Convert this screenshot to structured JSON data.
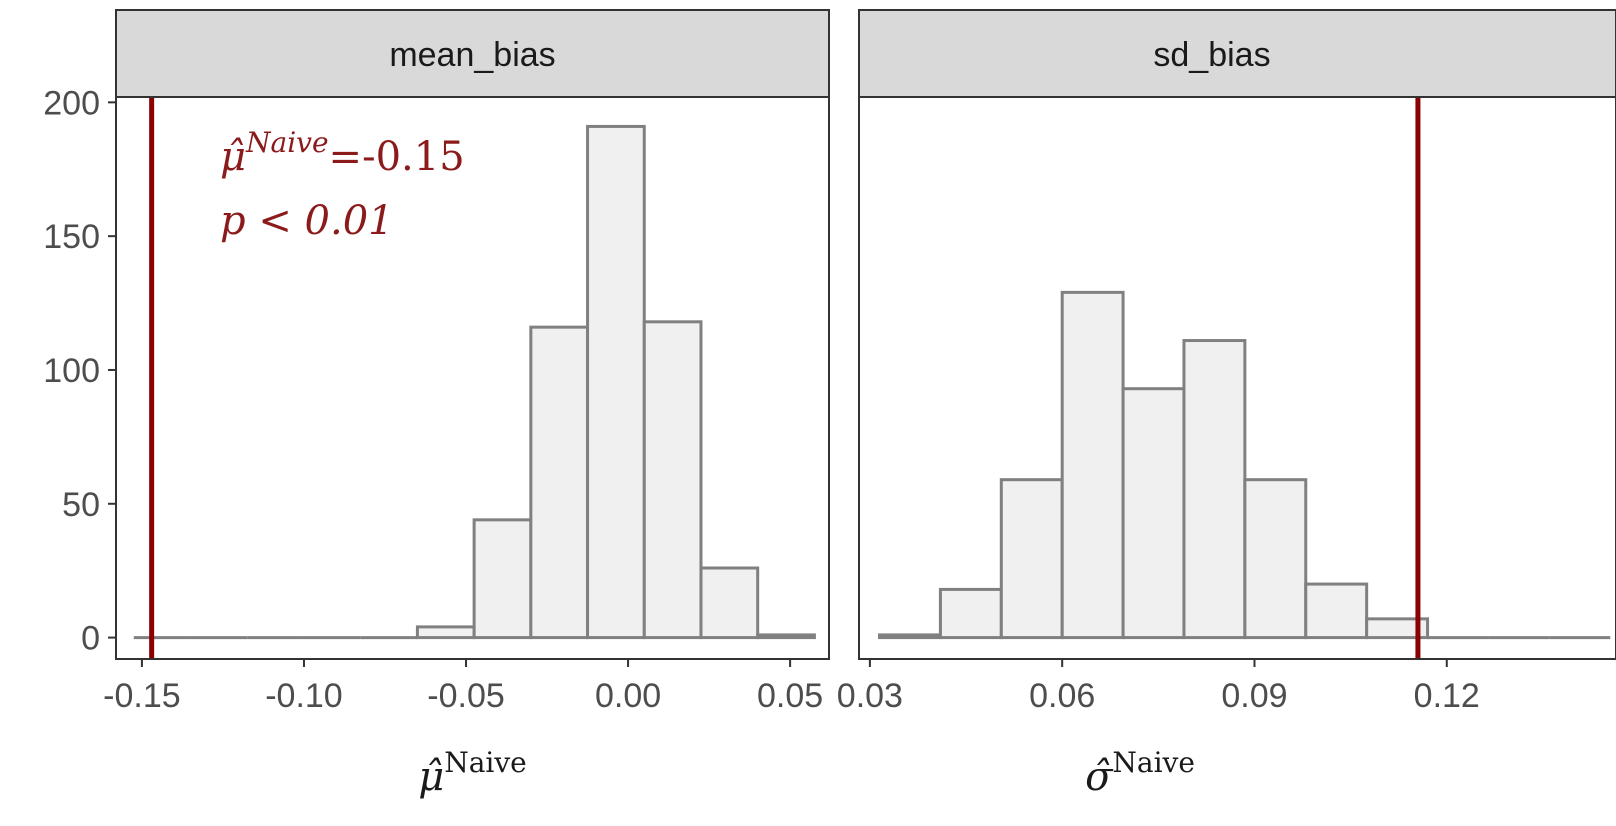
{
  "chart_data": [
    {
      "type": "bar",
      "panel": "mean_bias",
      "strip_label": "mean_bias",
      "xlabel": "μ̂",
      "xlabel_sup": "Naive",
      "xlim": [
        -0.158,
        0.062
      ],
      "ylim": [
        -8,
        202
      ],
      "x_ticks": [
        -0.15,
        -0.1,
        -0.05,
        0.0,
        0.05
      ],
      "x_tick_labels": [
        "-0.15",
        "-0.10",
        "-0.05",
        "0.00",
        "0.05"
      ],
      "y_ticks": [
        0,
        50,
        100,
        150,
        200
      ],
      "y_tick_labels": [
        "0",
        "50",
        "100",
        "150",
        "200"
      ],
      "bin_width": 0.0175,
      "bins": [
        {
          "x0": -0.1525,
          "x1": -0.135,
          "count": 0
        },
        {
          "x0": -0.135,
          "x1": -0.1175,
          "count": 0
        },
        {
          "x0": -0.1175,
          "x1": -0.1,
          "count": 0
        },
        {
          "x0": -0.1,
          "x1": -0.0825,
          "count": 0
        },
        {
          "x0": -0.0825,
          "x1": -0.065,
          "count": 0
        },
        {
          "x0": -0.065,
          "x1": -0.0475,
          "count": 4
        },
        {
          "x0": -0.0475,
          "x1": -0.03,
          "count": 44
        },
        {
          "x0": -0.03,
          "x1": -0.0125,
          "count": 116
        },
        {
          "x0": -0.0125,
          "x1": 0.005,
          "count": 191
        },
        {
          "x0": 0.005,
          "x1": 0.0225,
          "count": 118
        },
        {
          "x0": 0.0225,
          "x1": 0.04,
          "count": 26
        },
        {
          "x0": 0.04,
          "x1": 0.0575,
          "count": 1
        }
      ],
      "ref_line_x": -0.147,
      "ref_line_color": "#8b0000",
      "annotation": {
        "line1_symbol": "μ̂",
        "line1_sup": "Naive",
        "line1_value": "=-0.15",
        "line2": "p < 0.01",
        "color": "#8b1a1a"
      }
    },
    {
      "type": "bar",
      "panel": "sd_bias",
      "strip_label": "sd_bias",
      "xlabel": "σ̂",
      "xlabel_sup": "Naive",
      "xlim": [
        0.0283,
        0.1464
      ],
      "ylim": [
        -8,
        202
      ],
      "x_ticks": [
        0.03,
        0.06,
        0.09,
        0.12
      ],
      "x_tick_labels": [
        "0.03",
        "0.06",
        "0.09",
        "0.12"
      ],
      "y_ticks": [
        0,
        50,
        100,
        150,
        200
      ],
      "bin_width": 0.0095,
      "bins": [
        {
          "x0": 0.0315,
          "x1": 0.041,
          "count": 1
        },
        {
          "x0": 0.041,
          "x1": 0.0505,
          "count": 18
        },
        {
          "x0": 0.0505,
          "x1": 0.06,
          "count": 59
        },
        {
          "x0": 0.06,
          "x1": 0.0695,
          "count": 129
        },
        {
          "x0": 0.0695,
          "x1": 0.079,
          "count": 93
        },
        {
          "x0": 0.079,
          "x1": 0.0885,
          "count": 111
        },
        {
          "x0": 0.0885,
          "x1": 0.098,
          "count": 59
        },
        {
          "x0": 0.098,
          "x1": 0.1075,
          "count": 20
        },
        {
          "x0": 0.1075,
          "x1": 0.117,
          "count": 7
        },
        {
          "x0": 0.117,
          "x1": 0.1265,
          "count": 0
        },
        {
          "x0": 0.1265,
          "x1": 0.136,
          "count": 0
        },
        {
          "x0": 0.136,
          "x1": 0.1455,
          "count": 0
        }
      ],
      "ref_line_x": 0.1155,
      "ref_line_color": "#8b0000"
    }
  ]
}
